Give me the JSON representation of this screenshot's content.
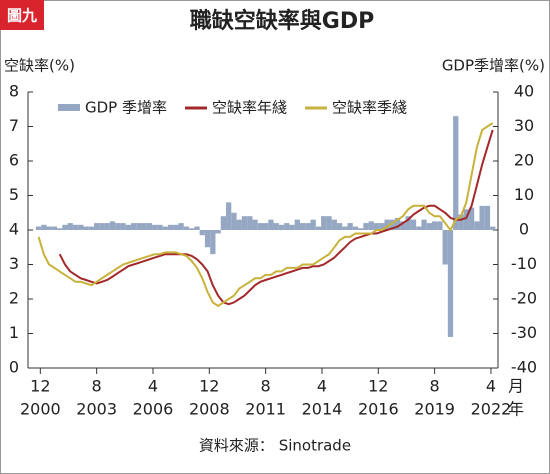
{
  "chart_data": {
    "type": "line-bar",
    "badge": "圖九",
    "title": "職缺空缺率與GDP",
    "y_label": "空缺率(%)",
    "y2_label": "GDP季增率(%)",
    "source": "資料來源： Sinotrade",
    "x_unit_labels": [
      "月",
      "年"
    ],
    "xlim": [
      "2000-05",
      "2022-08"
    ],
    "xticks": [
      {
        "value": "2000-12",
        "label": "12"
      },
      {
        "value": "2003-08",
        "label": "8"
      },
      {
        "value": "2006-04",
        "label": "4"
      },
      {
        "value": "2008-12",
        "label": "12"
      },
      {
        "value": "2011-08",
        "label": "8"
      },
      {
        "value": "2014-04",
        "label": "4"
      },
      {
        "value": "2016-12",
        "label": "12"
      },
      {
        "value": "2019-08",
        "label": "8"
      },
      {
        "value": "2022-04",
        "label": "4"
      }
    ],
    "x_year_labels": [
      "2000",
      "2003",
      "2006",
      "2008",
      "2011",
      "2014",
      "2016",
      "2019",
      "2022"
    ],
    "ylim": [
      0,
      8
    ],
    "yticks": [
      0,
      1,
      2,
      3,
      4,
      5,
      6,
      7,
      8
    ],
    "y2lim": [
      -40,
      40
    ],
    "y2ticks": [
      -40,
      -30,
      -20,
      -10,
      0,
      10,
      20,
      30,
      40
    ],
    "legend": "top-left",
    "x": [
      "2000-11",
      "2001-02",
      "2001-05",
      "2001-08",
      "2001-11",
      "2002-02",
      "2002-05",
      "2002-08",
      "2002-11",
      "2003-02",
      "2003-05",
      "2003-08",
      "2003-11",
      "2004-02",
      "2004-05",
      "2004-08",
      "2004-11",
      "2005-02",
      "2005-05",
      "2005-08",
      "2005-11",
      "2006-02",
      "2006-05",
      "2006-08",
      "2006-11",
      "2007-02",
      "2007-05",
      "2007-08",
      "2007-11",
      "2008-02",
      "2008-05",
      "2008-08",
      "2008-11",
      "2009-02",
      "2009-05",
      "2009-08",
      "2009-11",
      "2010-02",
      "2010-05",
      "2010-08",
      "2010-11",
      "2011-02",
      "2011-05",
      "2011-08",
      "2011-11",
      "2012-02",
      "2012-05",
      "2012-08",
      "2012-11",
      "2013-02",
      "2013-05",
      "2013-08",
      "2013-11",
      "2014-02",
      "2014-05",
      "2014-08",
      "2014-11",
      "2015-02",
      "2015-05",
      "2015-08",
      "2015-11",
      "2016-02",
      "2016-05",
      "2016-08",
      "2016-11",
      "2017-02",
      "2017-05",
      "2017-08",
      "2017-11",
      "2018-02",
      "2018-05",
      "2018-08",
      "2018-11",
      "2019-02",
      "2019-05",
      "2019-08",
      "2019-11",
      "2020-02",
      "2020-05",
      "2020-08",
      "2020-11",
      "2021-02",
      "2021-05",
      "2021-08",
      "2021-11",
      "2022-02",
      "2022-05"
    ],
    "series": [
      {
        "name": "GDP 季增率",
        "kind": "bar",
        "axis": "y2",
        "color": "#95a7c2",
        "values": [
          1,
          1.5,
          1,
          1,
          0.5,
          1.5,
          2,
          1.5,
          1.5,
          1,
          1,
          2,
          2,
          2,
          2.5,
          2,
          2,
          1.5,
          2,
          2,
          2,
          2,
          1.5,
          1.5,
          1,
          1.5,
          1.5,
          2,
          1,
          0.5,
          1,
          -1.5,
          -5,
          -7,
          -1,
          4,
          8,
          5,
          3,
          4,
          4,
          3,
          2,
          2,
          3,
          2,
          1.5,
          2,
          1.5,
          3,
          2,
          2,
          3,
          1,
          4,
          4,
          3,
          2,
          1,
          2,
          1,
          0.5,
          2,
          2.5,
          2,
          2,
          3,
          3,
          3.5,
          2.5,
          4,
          3,
          1,
          3,
          2,
          2.5,
          2.5,
          -10,
          -31,
          33,
          4.5,
          6,
          6.5,
          2.5,
          7,
          7,
          1
        ]
      },
      {
        "name": "空缺率年綫",
        "kind": "line",
        "color": "#a3282a",
        "values": [
          null,
          null,
          null,
          null,
          3.3,
          3.0,
          2.8,
          2.7,
          2.6,
          2.55,
          2.5,
          2.45,
          2.5,
          2.55,
          2.65,
          2.75,
          2.85,
          2.95,
          3.0,
          3.05,
          3.1,
          3.15,
          3.2,
          3.25,
          3.3,
          3.3,
          3.3,
          3.3,
          3.3,
          3.25,
          3.15,
          3.0,
          2.8,
          2.4,
          2.1,
          1.9,
          1.85,
          1.9,
          2.0,
          2.1,
          2.25,
          2.4,
          2.5,
          2.55,
          2.6,
          2.65,
          2.7,
          2.75,
          2.8,
          2.85,
          2.9,
          2.9,
          2.95,
          2.95,
          3.0,
          3.1,
          3.2,
          3.35,
          3.5,
          3.65,
          3.75,
          3.8,
          3.85,
          3.9,
          3.9,
          3.95,
          4.0,
          4.05,
          4.1,
          4.2,
          4.3,
          4.45,
          4.55,
          4.65,
          4.7,
          4.7,
          4.6,
          4.5,
          4.35,
          4.3,
          4.3,
          4.35,
          4.7,
          5.3,
          5.9,
          6.4,
          6.9
        ]
      },
      {
        "name": "空缺率季綫",
        "kind": "line",
        "color": "#c8b23c",
        "values": [
          3.8,
          3.3,
          3.0,
          2.9,
          2.8,
          2.7,
          2.6,
          2.5,
          2.5,
          2.45,
          2.4,
          2.5,
          2.6,
          2.7,
          2.8,
          2.9,
          3.0,
          3.05,
          3.1,
          3.15,
          3.2,
          3.25,
          3.3,
          3.3,
          3.35,
          3.35,
          3.35,
          3.3,
          3.25,
          3.1,
          2.9,
          2.6,
          2.2,
          1.9,
          1.8,
          1.9,
          2.0,
          2.1,
          2.3,
          2.4,
          2.5,
          2.6,
          2.6,
          2.7,
          2.7,
          2.8,
          2.8,
          2.9,
          2.9,
          2.9,
          3.0,
          3.0,
          3.0,
          3.1,
          3.2,
          3.3,
          3.5,
          3.7,
          3.8,
          3.8,
          3.9,
          3.9,
          3.9,
          3.9,
          4.0,
          4.0,
          4.1,
          4.2,
          4.3,
          4.4,
          4.6,
          4.7,
          4.7,
          4.7,
          4.5,
          4.4,
          4.4,
          4.2,
          4.0,
          4.3,
          4.4,
          4.8,
          5.6,
          6.4,
          6.9,
          7.0,
          7.1
        ]
      }
    ]
  }
}
